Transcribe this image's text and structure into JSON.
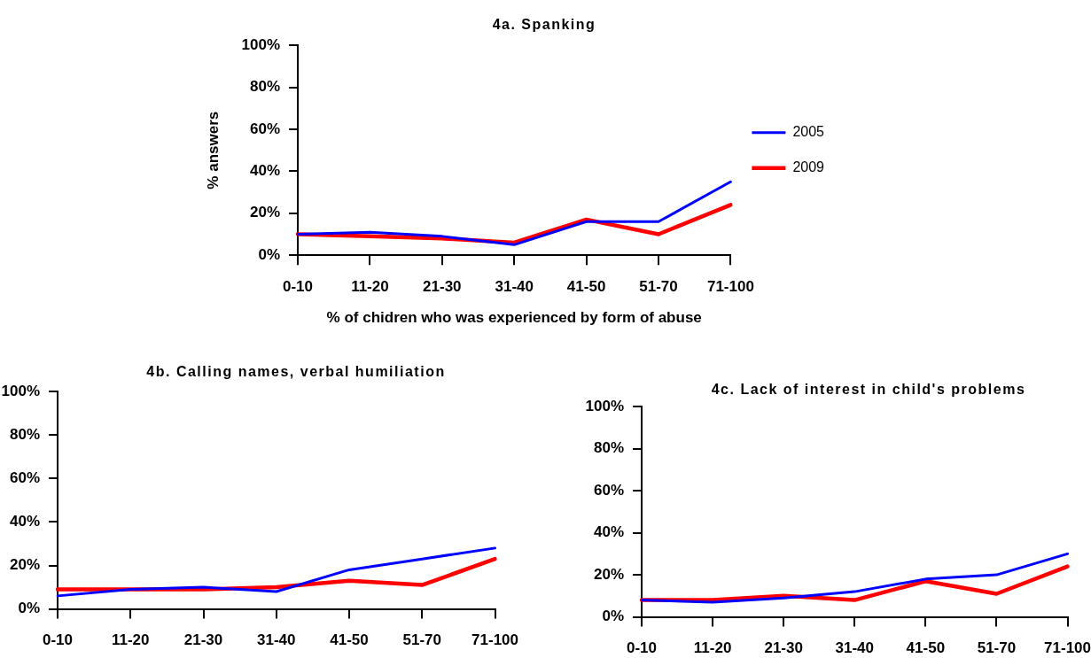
{
  "chart_data": [
    {
      "type": "line",
      "title": "4a. Spanking",
      "xlabel": "% of chidren who was experienced by form of abuse",
      "ylabel": "% answers",
      "categories": [
        "0-10",
        "11-20",
        "21-30",
        "31-40",
        "41-50",
        "51-70",
        "71-100"
      ],
      "series": [
        {
          "name": "2005",
          "color": "#0000ff",
          "values": [
            10,
            11,
            9,
            5,
            16,
            16,
            35
          ]
        },
        {
          "name": "2009",
          "color": "#ff0000",
          "values": [
            10,
            9,
            8,
            6,
            17,
            10,
            24
          ]
        }
      ],
      "ylim": [
        0,
        100
      ],
      "yticks": [
        {
          "value": 0,
          "label": "0%"
        },
        {
          "value": 20,
          "label": "20%"
        },
        {
          "value": 40,
          "label": "40%"
        },
        {
          "value": 60,
          "label": "60%"
        },
        {
          "value": 80,
          "label": "80%"
        },
        {
          "value": 100,
          "label": "100%"
        }
      ],
      "grid": false,
      "legend": "right"
    },
    {
      "type": "line",
      "title": "4b. Calling names, verbal humiliation",
      "categories": [
        "0-10",
        "11-20",
        "21-30",
        "31-40",
        "41-50",
        "51-70",
        "71-100"
      ],
      "series": [
        {
          "color": "#0000ff",
          "values": [
            6,
            9,
            10,
            8,
            18,
            23,
            28
          ]
        },
        {
          "color": "#ff0000",
          "values": [
            9,
            9,
            9,
            10,
            13,
            11,
            23
          ]
        }
      ],
      "ylim": [
        0,
        100
      ],
      "yticks": [
        {
          "value": 0,
          "label": "0%"
        },
        {
          "value": 20,
          "label": "20%"
        },
        {
          "value": 40,
          "label": "40%"
        },
        {
          "value": 60,
          "label": "60%"
        },
        {
          "value": 80,
          "label": "80%"
        },
        {
          "value": 100,
          "label": "100%"
        }
      ],
      "grid": false
    },
    {
      "type": "line",
      "title": "4c. Lack of interest in child's problems",
      "categories": [
        "0-10",
        "11-20",
        "21-30",
        "31-40",
        "41-50",
        "51-70",
        "71-100"
      ],
      "series": [
        {
          "color": "#0000ff",
          "values": [
            8,
            7,
            9,
            12,
            18,
            20,
            30
          ]
        },
        {
          "color": "#ff0000",
          "values": [
            8,
            8,
            10,
            8,
            17,
            11,
            24
          ]
        }
      ],
      "ylim": [
        0,
        100
      ],
      "yticks": [
        {
          "value": 0,
          "label": "0%"
        },
        {
          "value": 20,
          "label": "20%"
        },
        {
          "value": 40,
          "label": "40%"
        },
        {
          "value": 60,
          "label": "60%"
        },
        {
          "value": 80,
          "label": "80%"
        },
        {
          "value": 100,
          "label": "100%"
        }
      ],
      "grid": false
    }
  ]
}
